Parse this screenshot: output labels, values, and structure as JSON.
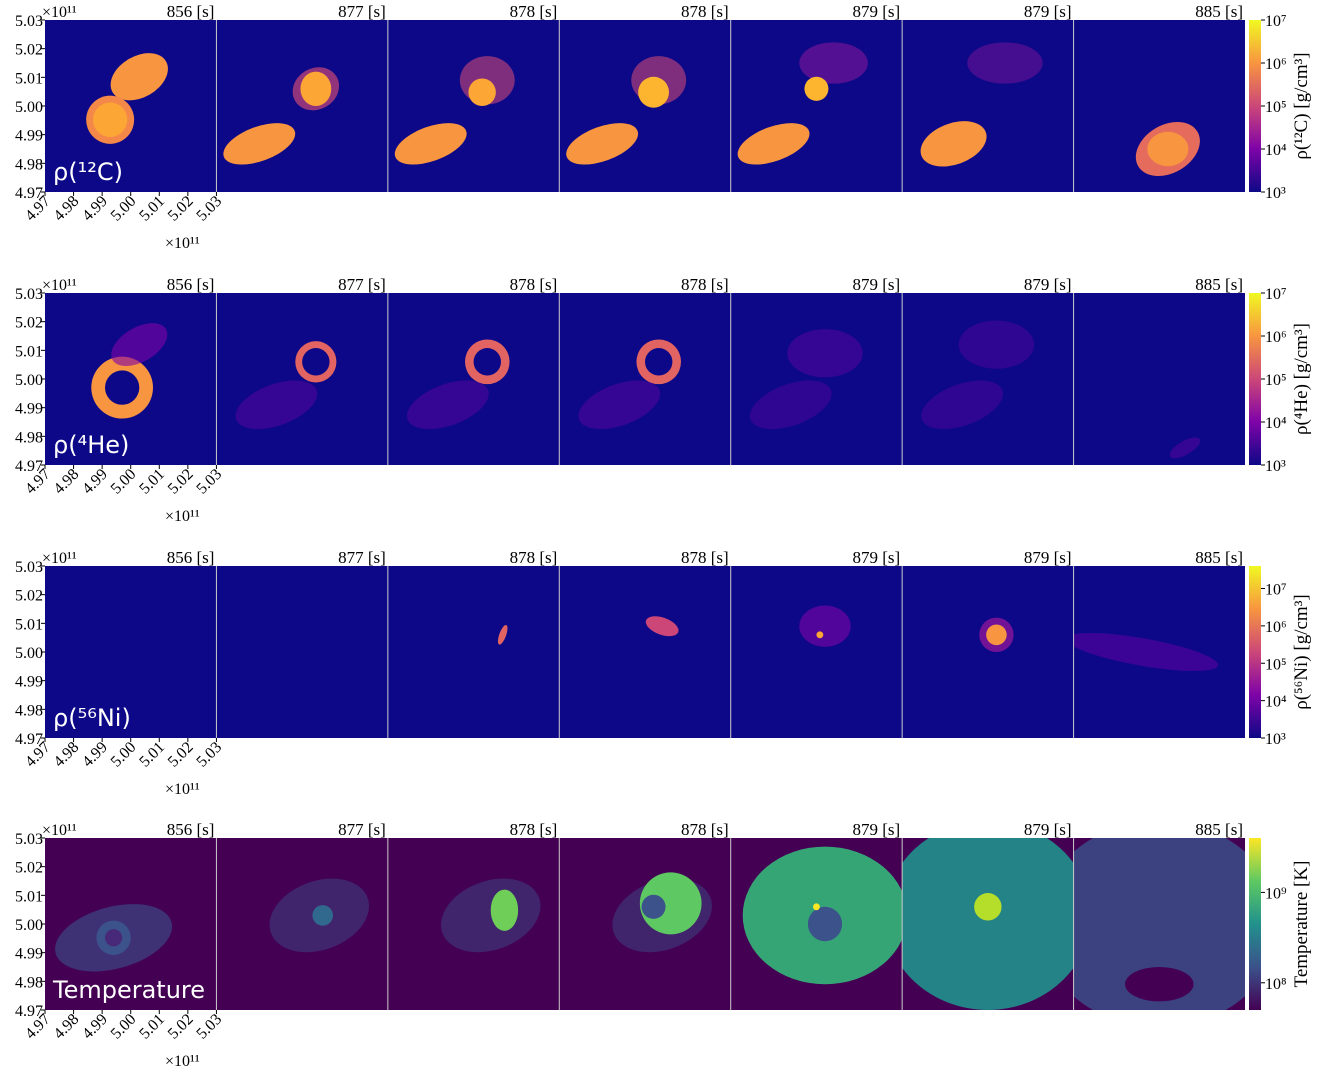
{
  "chart_data": [
    {
      "type": "image_grid",
      "label": "ρ(¹²C)",
      "panel_titles": [
        "856 [s]",
        "877 [s]",
        "878 [s]",
        "878 [s]",
        "879 [s]",
        "879 [s]",
        "885 [s]"
      ],
      "xlim": [
        4.97,
        5.03
      ],
      "ylim": [
        4.97,
        5.03
      ],
      "xticks": [
        4.97,
        4.98,
        4.99,
        {
          "value": 5,
          "label": "5.00"
        },
        5.01,
        5.02,
        5.03
      ],
      "yticks": [
        4.97,
        4.98,
        4.99,
        {
          "value": 5,
          "label": "5.00"
        },
        5.01,
        5.02,
        5.03
      ],
      "x_offset": "×10¹¹",
      "y_offset": "×10¹¹",
      "colormap": "plasma",
      "colorbar": {
        "label": "ρ(¹²C) [g/cm³]",
        "log": true,
        "lim": [
          1000,
          10000000
        ],
        "ticks": [
          {
            "value": 1000,
            "label": "10³"
          },
          {
            "value": 10000,
            "label": "10⁴"
          },
          {
            "value": 100000,
            "label": "10⁵"
          },
          {
            "value": 1000000,
            "label": "10⁶"
          },
          {
            "value": 10000000,
            "label": "10⁷"
          }
        ]
      }
    },
    {
      "type": "image_grid",
      "label": "ρ(⁴He)",
      "panel_titles": [
        "856 [s]",
        "877 [s]",
        "878 [s]",
        "878 [s]",
        "879 [s]",
        "879 [s]",
        "885 [s]"
      ],
      "xlim": [
        4.97,
        5.03
      ],
      "ylim": [
        4.97,
        5.03
      ],
      "xticks": [
        4.97,
        4.98,
        4.99,
        {
          "value": 5,
          "label": "5.00"
        },
        5.01,
        5.02,
        5.03
      ],
      "yticks": [
        4.97,
        4.98,
        4.99,
        {
          "value": 5,
          "label": "5.00"
        },
        5.01,
        5.02,
        5.03
      ],
      "x_offset": "×10¹¹",
      "y_offset": "×10¹¹",
      "colormap": "plasma",
      "colorbar": {
        "label": "ρ(⁴He) [g/cm³]",
        "log": true,
        "lim": [
          1000,
          10000000
        ],
        "ticks": [
          {
            "value": 1000,
            "label": "10³"
          },
          {
            "value": 10000,
            "label": "10⁴"
          },
          {
            "value": 100000,
            "label": "10⁵"
          },
          {
            "value": 1000000,
            "label": "10⁶"
          },
          {
            "value": 10000000,
            "label": "10⁷"
          }
        ]
      }
    },
    {
      "type": "image_grid",
      "label": "ρ(⁵⁶Ni)",
      "panel_titles": [
        "856 [s]",
        "877 [s]",
        "878 [s]",
        "878 [s]",
        "879 [s]",
        "879 [s]",
        "885 [s]"
      ],
      "xlim": [
        4.97,
        5.03
      ],
      "ylim": [
        4.97,
        5.03
      ],
      "xticks": [
        4.97,
        4.98,
        4.99,
        {
          "value": 5,
          "label": "5.00"
        },
        5.01,
        5.02,
        5.03
      ],
      "yticks": [
        4.97,
        4.98,
        4.99,
        {
          "value": 5,
          "label": "5.00"
        },
        5.01,
        5.02,
        5.03
      ],
      "x_offset": "×10¹¹",
      "y_offset": "×10¹¹",
      "colormap": "plasma",
      "colorbar": {
        "label": "ρ(⁵⁶Ni) [g/cm³]",
        "log": true,
        "lim": [
          1000,
          40000000
        ],
        "ticks": [
          {
            "value": 1000,
            "label": "10³"
          },
          {
            "value": 10000,
            "label": "10⁴"
          },
          {
            "value": 100000,
            "label": "10⁵"
          },
          {
            "value": 1000000,
            "label": "10⁶"
          },
          {
            "value": 10000000,
            "label": "10⁷"
          }
        ]
      }
    },
    {
      "type": "image_grid",
      "label": "Temperature",
      "panel_titles": [
        "856 [s]",
        "877 [s]",
        "878 [s]",
        "878 [s]",
        "879 [s]",
        "879 [s]",
        "885 [s]"
      ],
      "xlim": [
        4.97,
        5.03
      ],
      "ylim": [
        4.97,
        5.03
      ],
      "xticks": [
        4.97,
        4.98,
        4.99,
        {
          "value": 5,
          "label": "5.00"
        },
        5.01,
        5.02,
        5.03
      ],
      "yticks": [
        4.97,
        4.98,
        4.99,
        {
          "value": 5,
          "label": "5.00"
        },
        5.01,
        5.02,
        5.03
      ],
      "x_offset": "×10¹¹",
      "y_offset": "×10¹¹",
      "colormap": "viridis",
      "colorbar": {
        "label": "Temperature [K]",
        "log": true,
        "lim": [
          50000000,
          4000000000
        ],
        "ticks": [
          {
            "value": 100000000,
            "label": "10⁸"
          },
          {
            "value": 1000000000,
            "label": "10⁹"
          }
        ]
      }
    }
  ]
}
